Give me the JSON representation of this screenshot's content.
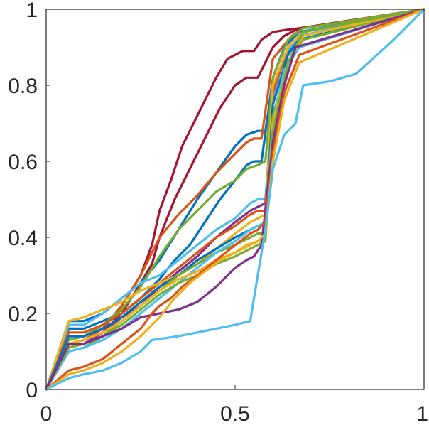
{
  "chart_data": {
    "type": "line",
    "title": "",
    "xlabel": "",
    "ylabel": "",
    "xlim": [
      0,
      1
    ],
    "ylim": [
      0,
      1
    ],
    "grid": false,
    "legend": "none",
    "x_ticks": [
      0,
      0.5,
      1
    ],
    "x_tick_labels": [
      "0",
      "0.5",
      "1"
    ],
    "y_ticks": [
      0,
      0.2,
      0.4,
      0.6,
      0.8,
      1
    ],
    "y_tick_labels": [
      "0",
      "0.2",
      "0.4",
      "0.6",
      "0.8",
      "1"
    ],
    "series": [
      {
        "color": "#A2142F",
        "x": [
          0,
          0.06,
          0.1,
          0.15,
          0.2,
          0.25,
          0.28,
          0.3,
          0.33,
          0.36,
          0.38,
          0.42,
          0.45,
          0.48,
          0.52,
          0.55,
          0.57,
          0.6,
          0.63,
          0.67,
          1
        ],
        "y": [
          0,
          0.12,
          0.13,
          0.16,
          0.22,
          0.3,
          0.38,
          0.47,
          0.55,
          0.64,
          0.68,
          0.76,
          0.82,
          0.87,
          0.89,
          0.89,
          0.92,
          0.94,
          0.945,
          0.95,
          1
        ]
      },
      {
        "color": "#A2142F",
        "x": [
          0,
          0.06,
          0.1,
          0.15,
          0.2,
          0.25,
          0.28,
          0.3,
          0.34,
          0.38,
          0.42,
          0.46,
          0.5,
          0.53,
          0.56,
          0.58,
          0.6,
          0.63,
          0.67,
          1
        ],
        "y": [
          0,
          0.11,
          0.12,
          0.15,
          0.2,
          0.28,
          0.33,
          0.4,
          0.5,
          0.58,
          0.66,
          0.74,
          0.8,
          0.82,
          0.82,
          0.86,
          0.9,
          0.93,
          0.95,
          1
        ]
      },
      {
        "color": "#0072BD",
        "x": [
          0,
          0.06,
          0.1,
          0.15,
          0.2,
          0.25,
          0.3,
          0.35,
          0.4,
          0.45,
          0.5,
          0.53,
          0.56,
          0.58,
          0.6,
          0.65,
          0.68,
          1
        ],
        "y": [
          0,
          0.18,
          0.18,
          0.2,
          0.24,
          0.28,
          0.34,
          0.42,
          0.5,
          0.57,
          0.64,
          0.67,
          0.68,
          0.68,
          0.8,
          0.9,
          0.94,
          1
        ]
      },
      {
        "color": "#D95319",
        "x": [
          0,
          0.06,
          0.1,
          0.15,
          0.2,
          0.25,
          0.3,
          0.35,
          0.4,
          0.45,
          0.5,
          0.53,
          0.55,
          0.57,
          0.6,
          0.65,
          0.68,
          1
        ],
        "y": [
          0,
          0.12,
          0.13,
          0.16,
          0.22,
          0.3,
          0.4,
          0.46,
          0.51,
          0.57,
          0.62,
          0.65,
          0.66,
          0.66,
          0.87,
          0.93,
          0.95,
          1
        ]
      },
      {
        "color": "#0072BD",
        "x": [
          0,
          0.06,
          0.1,
          0.15,
          0.2,
          0.25,
          0.3,
          0.34,
          0.38,
          0.42,
          0.46,
          0.5,
          0.53,
          0.55,
          0.57,
          0.6,
          0.63,
          0.67,
          1
        ],
        "y": [
          0,
          0.16,
          0.16,
          0.18,
          0.2,
          0.24,
          0.29,
          0.34,
          0.38,
          0.44,
          0.5,
          0.55,
          0.59,
          0.6,
          0.6,
          0.82,
          0.9,
          0.94,
          1
        ]
      },
      {
        "color": "#77AC30",
        "x": [
          0,
          0.06,
          0.1,
          0.15,
          0.2,
          0.25,
          0.3,
          0.35,
          0.4,
          0.45,
          0.5,
          0.53,
          0.56,
          0.58,
          0.6,
          0.64,
          0.68,
          1
        ],
        "y": [
          0,
          0.13,
          0.14,
          0.17,
          0.21,
          0.27,
          0.35,
          0.42,
          0.47,
          0.52,
          0.55,
          0.58,
          0.59,
          0.6,
          0.82,
          0.92,
          0.95,
          1
        ]
      },
      {
        "color": "#4DBEEE",
        "x": [
          0,
          0.06,
          0.1,
          0.15,
          0.2,
          0.25,
          0.3,
          0.35,
          0.4,
          0.45,
          0.5,
          0.54,
          0.56,
          0.58,
          0.6,
          0.63,
          0.67,
          1
        ],
        "y": [
          0,
          0.17,
          0.17,
          0.2,
          0.24,
          0.28,
          0.3,
          0.34,
          0.38,
          0.42,
          0.45,
          0.49,
          0.5,
          0.5,
          0.76,
          0.88,
          0.93,
          1
        ]
      },
      {
        "color": "#7E2F8E",
        "x": [
          0,
          0.06,
          0.1,
          0.15,
          0.2,
          0.25,
          0.3,
          0.35,
          0.4,
          0.45,
          0.5,
          0.54,
          0.56,
          0.58,
          0.6,
          0.63,
          0.67,
          1
        ],
        "y": [
          0,
          0.12,
          0.12,
          0.15,
          0.19,
          0.22,
          0.27,
          0.31,
          0.35,
          0.4,
          0.44,
          0.47,
          0.48,
          0.49,
          0.7,
          0.84,
          0.9,
          1
        ]
      },
      {
        "color": "#D95319",
        "x": [
          0,
          0.06,
          0.1,
          0.15,
          0.2,
          0.25,
          0.3,
          0.35,
          0.4,
          0.45,
          0.5,
          0.54,
          0.56,
          0.58,
          0.6,
          0.64,
          0.68,
          1
        ],
        "y": [
          0,
          0.15,
          0.15,
          0.17,
          0.2,
          0.24,
          0.28,
          0.32,
          0.36,
          0.4,
          0.43,
          0.46,
          0.47,
          0.47,
          0.78,
          0.9,
          0.94,
          1
        ]
      },
      {
        "color": "#EDB120",
        "x": [
          0,
          0.06,
          0.1,
          0.15,
          0.2,
          0.25,
          0.3,
          0.35,
          0.4,
          0.45,
          0.5,
          0.54,
          0.56,
          0.58,
          0.6,
          0.64,
          0.68,
          1
        ],
        "y": [
          0,
          0.18,
          0.19,
          0.21,
          0.23,
          0.26,
          0.28,
          0.3,
          0.33,
          0.37,
          0.41,
          0.44,
          0.45,
          0.46,
          0.8,
          0.9,
          0.94,
          1
        ]
      },
      {
        "color": "#0072BD",
        "x": [
          0,
          0.06,
          0.1,
          0.15,
          0.2,
          0.25,
          0.3,
          0.35,
          0.4,
          0.45,
          0.5,
          0.54,
          0.56,
          0.58,
          0.6,
          0.64,
          0.67,
          1
        ],
        "y": [
          0,
          0.14,
          0.14,
          0.16,
          0.19,
          0.23,
          0.27,
          0.3,
          0.34,
          0.37,
          0.4,
          0.42,
          0.43,
          0.43,
          0.75,
          0.88,
          0.92,
          1
        ]
      },
      {
        "color": "#77AC30",
        "x": [
          0,
          0.06,
          0.1,
          0.15,
          0.2,
          0.25,
          0.3,
          0.35,
          0.4,
          0.45,
          0.5,
          0.54,
          0.56,
          0.58,
          0.6,
          0.64,
          0.68,
          1
        ],
        "y": [
          0,
          0.1,
          0.11,
          0.14,
          0.18,
          0.22,
          0.26,
          0.3,
          0.33,
          0.36,
          0.38,
          0.4,
          0.41,
          0.41,
          0.72,
          0.86,
          0.92,
          1
        ]
      },
      {
        "color": "#4DBEEE",
        "x": [
          0,
          0.06,
          0.1,
          0.15,
          0.2,
          0.25,
          0.3,
          0.35,
          0.4,
          0.45,
          0.5,
          0.54,
          0.56,
          0.58,
          0.6,
          0.63,
          0.67,
          1
        ],
        "y": [
          0,
          0.1,
          0.11,
          0.13,
          0.16,
          0.2,
          0.24,
          0.28,
          0.32,
          0.36,
          0.39,
          0.42,
          0.43,
          0.44,
          0.7,
          0.84,
          0.9,
          1
        ]
      },
      {
        "color": "#EDB120",
        "x": [
          0,
          0.06,
          0.1,
          0.15,
          0.2,
          0.25,
          0.3,
          0.35,
          0.4,
          0.45,
          0.5,
          0.54,
          0.56,
          0.58,
          0.6,
          0.64,
          0.68,
          1
        ],
        "y": [
          0,
          0.12,
          0.13,
          0.15,
          0.18,
          0.22,
          0.26,
          0.29,
          0.31,
          0.34,
          0.36,
          0.38,
          0.39,
          0.39,
          0.7,
          0.86,
          0.93,
          1
        ]
      },
      {
        "color": "#77AC30",
        "x": [
          0,
          0.06,
          0.1,
          0.15,
          0.2,
          0.25,
          0.3,
          0.35,
          0.4,
          0.45,
          0.5,
          0.54,
          0.56,
          0.58,
          0.6,
          0.64,
          0.68,
          1
        ],
        "y": [
          0,
          0.11,
          0.12,
          0.14,
          0.17,
          0.21,
          0.25,
          0.28,
          0.3,
          0.33,
          0.35,
          0.37,
          0.38,
          0.39,
          0.68,
          0.86,
          0.94,
          1
        ]
      },
      {
        "color": "#7E2F8E",
        "x": [
          0,
          0.06,
          0.1,
          0.15,
          0.2,
          0.25,
          0.3,
          0.35,
          0.4,
          0.45,
          0.5,
          0.53,
          0.55,
          0.57,
          0.6,
          0.63,
          0.66,
          1
        ],
        "y": [
          0,
          0.12,
          0.12,
          0.14,
          0.16,
          0.19,
          0.2,
          0.21,
          0.23,
          0.27,
          0.32,
          0.34,
          0.35,
          0.38,
          0.65,
          0.8,
          0.9,
          1
        ]
      },
      {
        "color": "#D95319",
        "x": [
          0,
          0.06,
          0.1,
          0.15,
          0.2,
          0.25,
          0.28,
          0.3,
          0.33,
          0.36,
          0.4,
          0.45,
          0.5,
          0.54,
          0.56,
          0.58,
          0.6,
          0.63,
          0.67,
          1
        ],
        "y": [
          0,
          0.05,
          0.06,
          0.08,
          0.12,
          0.16,
          0.2,
          0.22,
          0.24,
          0.27,
          0.3,
          0.34,
          0.38,
          0.41,
          0.42,
          0.44,
          0.62,
          0.78,
          0.88,
          1
        ]
      },
      {
        "color": "#EDB120",
        "x": [
          0,
          0.06,
          0.1,
          0.15,
          0.2,
          0.25,
          0.3,
          0.34,
          0.38,
          0.42,
          0.46,
          0.5,
          0.53,
          0.56,
          0.58,
          0.6,
          0.63,
          0.67,
          1
        ],
        "y": [
          0,
          0.04,
          0.05,
          0.07,
          0.1,
          0.14,
          0.19,
          0.24,
          0.28,
          0.31,
          0.34,
          0.36,
          0.38,
          0.39,
          0.41,
          0.6,
          0.76,
          0.86,
          1
        ]
      },
      {
        "color": "#4DBEEE",
        "x": [
          0,
          0.06,
          0.1,
          0.15,
          0.2,
          0.25,
          0.28,
          0.35,
          0.4,
          0.45,
          0.5,
          0.54,
          0.56,
          0.58,
          0.6,
          0.63,
          0.66,
          0.68,
          0.75,
          0.82,
          0.92,
          1
        ],
        "y": [
          0,
          0.03,
          0.04,
          0.05,
          0.07,
          0.1,
          0.13,
          0.14,
          0.15,
          0.16,
          0.17,
          0.18,
          0.3,
          0.42,
          0.58,
          0.67,
          0.7,
          0.8,
          0.81,
          0.83,
          0.92,
          1
        ]
      }
    ]
  }
}
